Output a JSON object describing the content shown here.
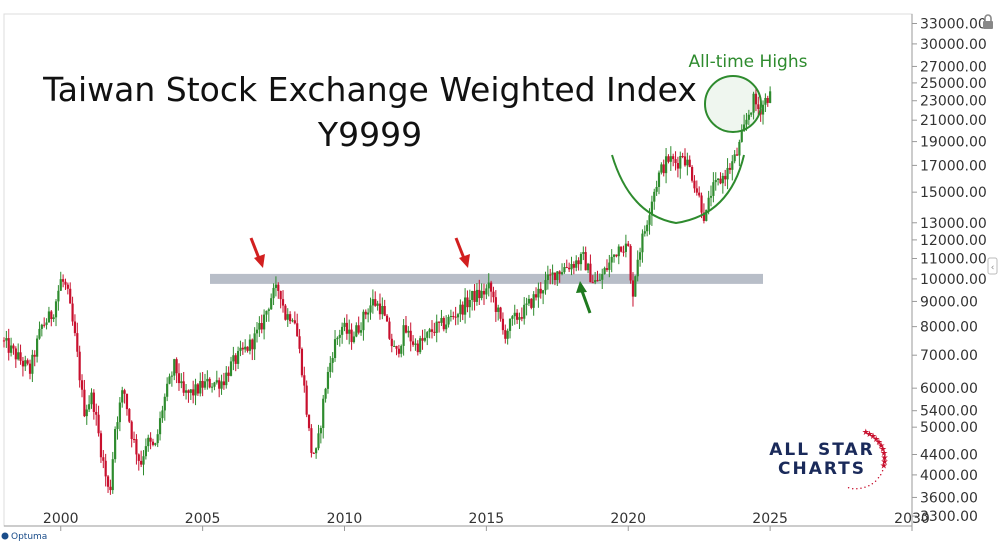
{
  "chart_data": {
    "type": "candlestick",
    "title": "Taiwan Stock Exchange Weighted Index",
    "subtitle": "Y9999",
    "xlabel": "",
    "ylabel": "",
    "scale": "log",
    "xlim": [
      1998,
      2030
    ],
    "ylim": [
      3150,
      34500
    ],
    "x_ticks": [
      "2000",
      "2005",
      "2010",
      "2015",
      "2020",
      "2025",
      "2030"
    ],
    "y_ticks": [
      "33000.00",
      "30000.00",
      "27000.00",
      "25000.00",
      "23000.00",
      "21000.00",
      "19000.00",
      "17000.00",
      "15000.00",
      "13000.00",
      "12000.00",
      "11000.00",
      "10000.00",
      "9000.00",
      "8000.00",
      "7000.00",
      "6000.00",
      "5400.00",
      "5000.00",
      "4400.00",
      "4000.00",
      "3600.00",
      "3300.00"
    ],
    "series": [
      {
        "name": "",
        "points": [
          [
            1998.0,
            7500
          ],
          [
            1998.6,
            6900
          ],
          [
            1999.0,
            6500
          ],
          [
            1999.4,
            8000
          ],
          [
            1999.8,
            8500
          ],
          [
            2000.1,
            10000
          ],
          [
            2000.3,
            9500
          ],
          [
            2000.6,
            7500
          ],
          [
            2000.9,
            5400
          ],
          [
            2001.2,
            5800
          ],
          [
            2001.5,
            4500
          ],
          [
            2001.8,
            3600
          ],
          [
            2002.0,
            5000
          ],
          [
            2002.3,
            6000
          ],
          [
            2002.6,
            4800
          ],
          [
            2002.9,
            4200
          ],
          [
            2003.1,
            4700
          ],
          [
            2003.4,
            4500
          ],
          [
            2003.7,
            5600
          ],
          [
            2004.1,
            6700
          ],
          [
            2004.4,
            5800
          ],
          [
            2004.8,
            5900
          ],
          [
            2005.1,
            6100
          ],
          [
            2005.4,
            6150
          ],
          [
            2005.8,
            6200
          ],
          [
            2006.1,
            6700
          ],
          [
            2006.4,
            7000
          ],
          [
            2006.8,
            7400
          ],
          [
            2007.1,
            7900
          ],
          [
            2007.5,
            9200
          ],
          [
            2007.8,
            9600
          ],
          [
            2008.0,
            8400
          ],
          [
            2008.3,
            8500
          ],
          [
            2008.6,
            6500
          ],
          [
            2008.9,
            4500
          ],
          [
            2009.1,
            4400
          ],
          [
            2009.4,
            6000
          ],
          [
            2009.7,
            7300
          ],
          [
            2010.0,
            8000
          ],
          [
            2010.3,
            7600
          ],
          [
            2010.6,
            8000
          ],
          [
            2010.9,
            8700
          ],
          [
            2011.1,
            9000
          ],
          [
            2011.4,
            8700
          ],
          [
            2011.7,
            7500
          ],
          [
            2011.9,
            7000
          ],
          [
            2012.2,
            7900
          ],
          [
            2012.6,
            7300
          ],
          [
            2012.9,
            7500
          ],
          [
            2013.2,
            7900
          ],
          [
            2013.6,
            8100
          ],
          [
            2013.9,
            8400
          ],
          [
            2014.2,
            8700
          ],
          [
            2014.6,
            9200
          ],
          [
            2014.9,
            9300
          ],
          [
            2015.2,
            9600
          ],
          [
            2015.5,
            8500
          ],
          [
            2015.7,
            7700
          ],
          [
            2016.0,
            8200
          ],
          [
            2016.4,
            8600
          ],
          [
            2016.8,
            9200
          ],
          [
            2017.1,
            9700
          ],
          [
            2017.5,
            10300
          ],
          [
            2017.9,
            10600
          ],
          [
            2018.2,
            10800
          ],
          [
            2018.5,
            11000
          ],
          [
            2018.8,
            10000
          ],
          [
            2019.0,
            9800
          ],
          [
            2019.4,
            10700
          ],
          [
            2019.8,
            11800
          ],
          [
            2020.1,
            11500
          ],
          [
            2020.2,
            9000
          ],
          [
            2020.4,
            11000
          ],
          [
            2020.7,
            12800
          ],
          [
            2020.9,
            14500
          ],
          [
            2021.2,
            16500
          ],
          [
            2021.5,
            17500
          ],
          [
            2021.8,
            17200
          ],
          [
            2022.0,
            18000
          ],
          [
            2022.3,
            16500
          ],
          [
            2022.6,
            14500
          ],
          [
            2022.8,
            13200
          ],
          [
            2023.0,
            15000
          ],
          [
            2023.3,
            15800
          ],
          [
            2023.6,
            16600
          ],
          [
            2023.9,
            17800
          ],
          [
            2024.1,
            19500
          ],
          [
            2024.3,
            21500
          ],
          [
            2024.5,
            23000
          ],
          [
            2024.7,
            22000
          ],
          [
            2024.9,
            23000
          ],
          [
            2025.0,
            23500
          ]
        ]
      }
    ],
    "annotations": [
      {
        "text": "All-time Highs"
      }
    ],
    "resistance_level": 10000,
    "colors": {
      "up": "#2e8b2e",
      "down": "#c8102e",
      "zone": "#b8bec8",
      "arrow_red": "#d21f1f",
      "arrow_green": "#1f7a1f",
      "circle": "#2e8b2e"
    }
  },
  "branding": {
    "logo_line1": "ALL STAR",
    "logo_line2": "CHARTS",
    "platform": "Optuma"
  }
}
